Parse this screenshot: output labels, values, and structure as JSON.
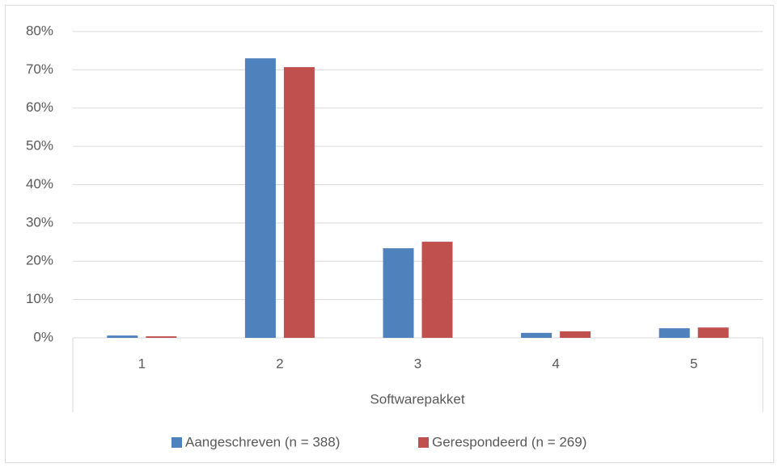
{
  "chart_data": {
    "type": "bar",
    "x_label": "Softwarepakket",
    "categories": [
      "1",
      "2",
      "3",
      "4",
      "5"
    ],
    "series": [
      {
        "name": "Aangeschreven (n = 388)",
        "color": "#4f81bd",
        "values": [
          0.6,
          73.0,
          23.4,
          1.3,
          2.5
        ]
      },
      {
        "name": "Gerespondeerd (n = 269)",
        "color": "#c0504d",
        "values": [
          0.4,
          70.7,
          25.1,
          1.7,
          2.7
        ]
      }
    ],
    "ylim": [
      0,
      80
    ],
    "yticks": [
      {
        "value": 0,
        "label": "0%"
      },
      {
        "value": 10,
        "label": "10%"
      },
      {
        "value": 20,
        "label": "20%"
      },
      {
        "value": 30,
        "label": "30%"
      },
      {
        "value": 40,
        "label": "40%"
      },
      {
        "value": 50,
        "label": "50%"
      },
      {
        "value": 60,
        "label": "60%"
      },
      {
        "value": 70,
        "label": "70%"
      },
      {
        "value": 80,
        "label": "80%"
      }
    ],
    "grid": true,
    "legend": "bottom"
  }
}
